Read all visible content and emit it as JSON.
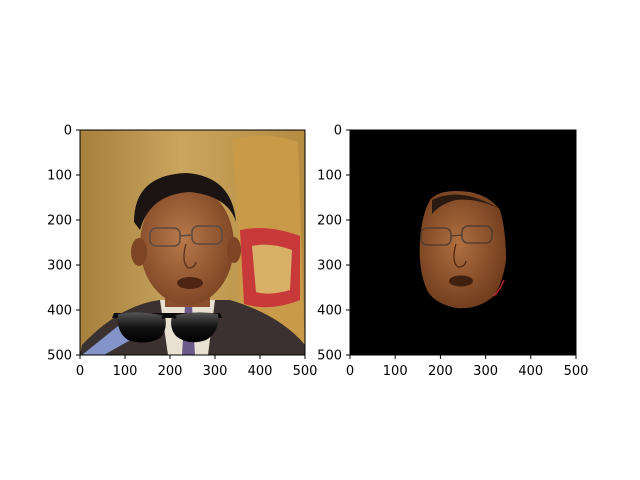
{
  "chart_data": [
    {
      "type": "image",
      "title": "",
      "xlabel": "",
      "ylabel": "",
      "xlim": [
        0,
        500
      ],
      "ylim": [
        500,
        0
      ],
      "xticks": [
        0,
        100,
        200,
        300,
        400,
        500
      ],
      "yticks": [
        0,
        100,
        200,
        300,
        400,
        500
      ],
      "content": "portrait photo of a man with a sunglasses overlay near the bottom",
      "colors": {
        "background_warm": "#b8904a",
        "flag_red": "#c83a3a",
        "suit": "#3a3130",
        "skin": "#9a5a33",
        "hair": "#1c1412"
      }
    },
    {
      "type": "image",
      "title": "",
      "xlabel": "",
      "ylabel": "",
      "xlim": [
        0,
        500
      ],
      "ylim": [
        500,
        0
      ],
      "xticks": [
        0,
        100,
        200,
        300,
        400,
        500
      ],
      "yticks": [
        0,
        100,
        200,
        300,
        400,
        500
      ],
      "content": "face mask crop on black background",
      "colors": {
        "background": "#000000",
        "skin": "#8f5431"
      }
    }
  ]
}
